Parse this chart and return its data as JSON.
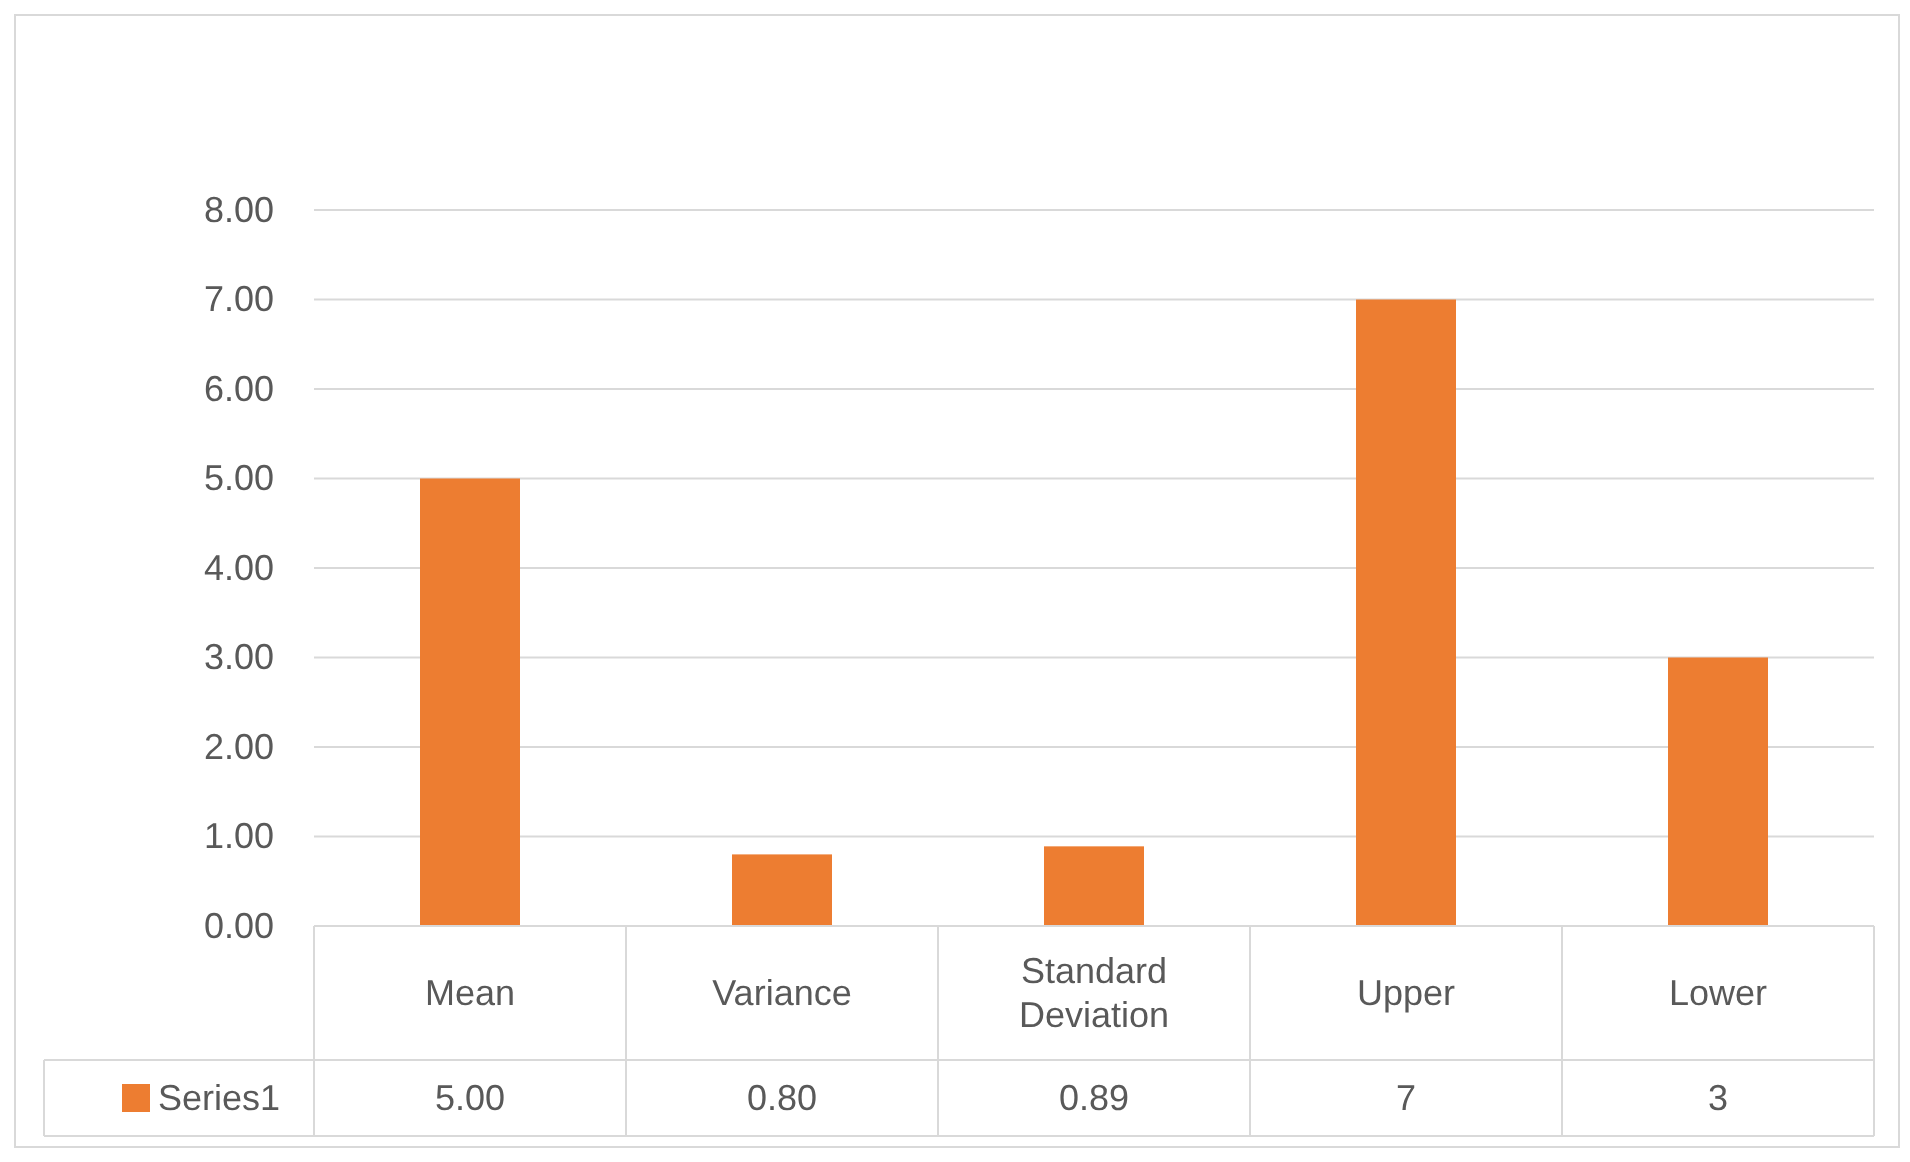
{
  "chart_data": {
    "type": "bar",
    "categories": [
      "Mean",
      "Variance",
      "Standard Deviation",
      "Upper",
      "Lower"
    ],
    "series": [
      {
        "name": "Series1",
        "color": "#ed7d31",
        "values": [
          5.0,
          0.8,
          0.89,
          7,
          3
        ],
        "value_labels": [
          "5.00",
          "0.80",
          "0.89",
          "7",
          "3"
        ]
      }
    ],
    "ylim": [
      0,
      8
    ],
    "yticks": [
      {
        "value": 0,
        "label": "0.00"
      },
      {
        "value": 1,
        "label": "1.00"
      },
      {
        "value": 2,
        "label": "2.00"
      },
      {
        "value": 3,
        "label": "3.00"
      },
      {
        "value": 4,
        "label": "4.00"
      },
      {
        "value": 5,
        "label": "5.00"
      },
      {
        "value": 6,
        "label": "6.00"
      },
      {
        "value": 7,
        "label": "7.00"
      },
      {
        "value": 8,
        "label": "8.00"
      }
    ],
    "grid": "y",
    "legend": "bottom"
  }
}
